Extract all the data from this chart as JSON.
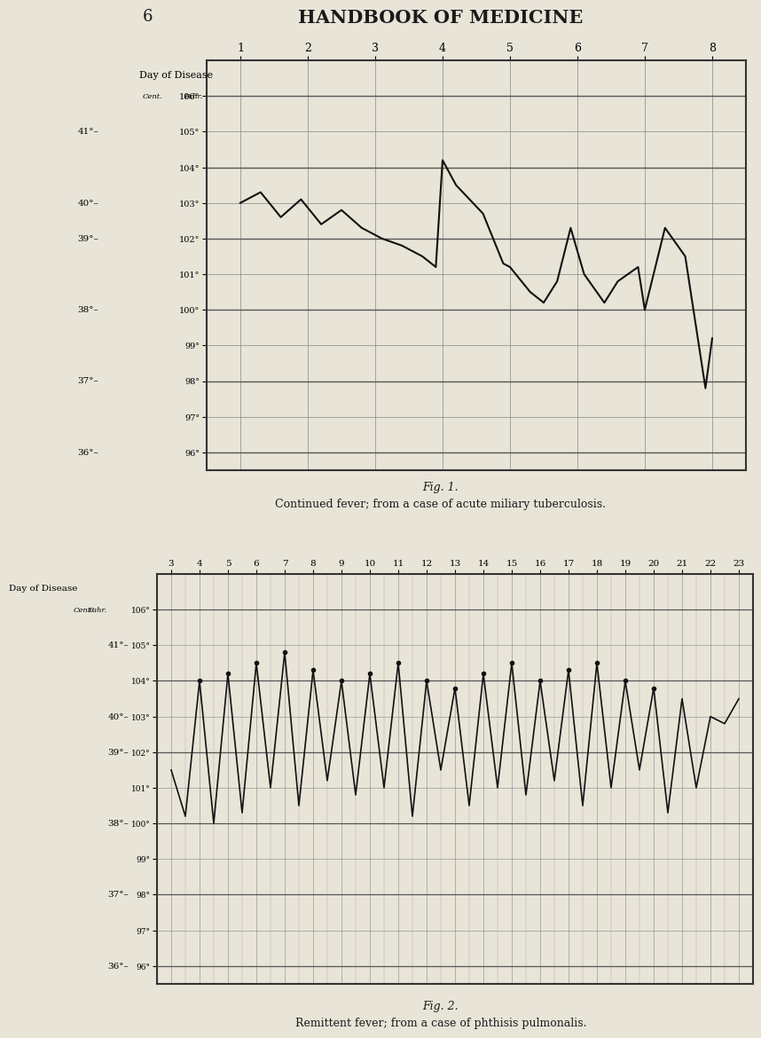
{
  "bg_color": "#e8e4d8",
  "page_title": "HANDBOOK OF MEDICINE",
  "page_number": "6",
  "chart1": {
    "title_fig": "Fig. 1.",
    "title_caption": "Continued fever; from a case of acute miliary tuberculosis.",
    "days": [
      1,
      2,
      3,
      4,
      5,
      6,
      7,
      8
    ],
    "fahr_ticks": [
      96,
      97,
      98,
      99,
      100,
      101,
      102,
      103,
      104,
      105,
      106
    ],
    "cent_labels": {
      "106": "",
      "105": "41°—",
      "104": "",
      "103": "40°—",
      "102": "",
      "102b": "39°—",
      "101": "",
      "100": "38°—",
      "99": "",
      "98": "37°—",
      "97": "",
      "96": "36°—"
    },
    "data_x": [
      1.0,
      1.3,
      1.6,
      1.9,
      2.2,
      2.5,
      2.8,
      3.1,
      3.4,
      3.7,
      3.9,
      4.0,
      4.2,
      4.6,
      4.9,
      5.0,
      5.3,
      5.5,
      5.7,
      5.9,
      6.1,
      6.4,
      6.6,
      6.9,
      7.0,
      7.3,
      7.6,
      7.9,
      8.0
    ],
    "data_y": [
      103.0,
      103.3,
      102.6,
      103.1,
      102.4,
      102.8,
      102.3,
      102.0,
      101.8,
      101.5,
      101.2,
      104.2,
      103.5,
      102.7,
      101.3,
      101.2,
      100.5,
      100.2,
      100.8,
      102.3,
      101.0,
      100.2,
      100.8,
      101.2,
      100.0,
      102.3,
      101.5,
      97.8,
      99.2
    ]
  },
  "chart2": {
    "title_fig": "Fig. 2.",
    "title_caption": "Remittent fever; from a case of phthisis pulmonalis.",
    "days": [
      3,
      4,
      5,
      6,
      7,
      8,
      9,
      10,
      11,
      12,
      13,
      14,
      15,
      16,
      17,
      18,
      19,
      20,
      21,
      22,
      23
    ],
    "data_x": [
      3.0,
      3.5,
      4.0,
      4.5,
      5.0,
      5.5,
      6.0,
      6.5,
      7.0,
      7.5,
      8.0,
      8.5,
      9.0,
      9.5,
      10.0,
      10.5,
      11.0,
      11.5,
      12.0,
      12.5,
      13.0,
      13.5,
      14.0,
      14.5,
      15.0,
      15.5,
      16.0,
      16.5,
      17.0,
      17.5,
      18.0,
      18.5,
      19.0,
      19.5,
      20.0,
      20.5,
      21.0,
      21.5,
      22.0,
      22.5,
      23.0
    ],
    "data_y": [
      101.5,
      100.2,
      104.0,
      100.0,
      104.2,
      100.3,
      104.5,
      101.0,
      104.8,
      100.5,
      104.3,
      101.2,
      104.0,
      100.8,
      104.2,
      101.0,
      104.5,
      100.2,
      104.0,
      101.5,
      103.8,
      100.5,
      104.2,
      101.0,
      104.5,
      100.8,
      104.0,
      101.2,
      104.3,
      100.5,
      104.5,
      101.0,
      104.0,
      101.5,
      103.8,
      100.3,
      103.5,
      101.0,
      103.0,
      102.8,
      103.5
    ]
  }
}
